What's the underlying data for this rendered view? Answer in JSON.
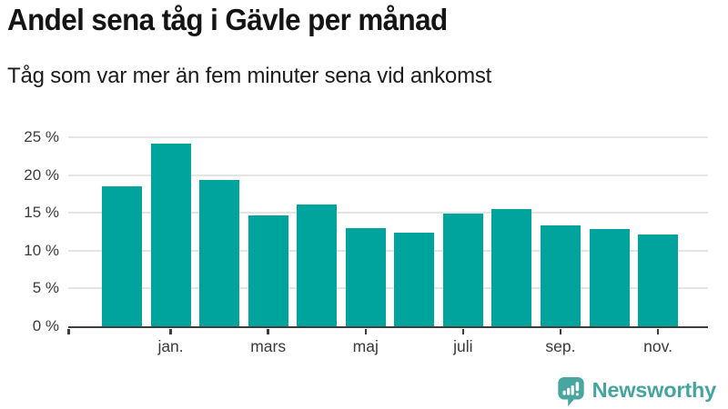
{
  "header": {
    "title": "Andel sena tåg i Gävle per månad",
    "subtitle": "Tåg som var mer än fem minuter sena vid ankomst"
  },
  "chart_data": {
    "type": "bar",
    "values": [
      18.5,
      24.2,
      19.3,
      14.7,
      16.1,
      13.0,
      12.4,
      14.9,
      15.5,
      13.3,
      12.9,
      12.1
    ],
    "xticks": [
      {
        "bar_index": 1,
        "label": "jan."
      },
      {
        "bar_index": 3,
        "label": "mars"
      },
      {
        "bar_index": 5,
        "label": "maj"
      },
      {
        "bar_index": 7,
        "label": "juli"
      },
      {
        "bar_index": 9,
        "label": "sep."
      },
      {
        "bar_index": 11,
        "label": "nov."
      }
    ],
    "yticks": [
      {
        "value": 0,
        "label": "0 %"
      },
      {
        "value": 5,
        "label": "5 %"
      },
      {
        "value": 10,
        "label": "10 %"
      },
      {
        "value": 15,
        "label": "15 %"
      },
      {
        "value": 20,
        "label": "20 %"
      },
      {
        "value": 25,
        "label": "25 %"
      }
    ],
    "ylim": [
      0,
      25
    ],
    "grid": true,
    "legend": "none",
    "bar_color": "#00a49c",
    "gridline_color": "#e4e4e4",
    "axis_color": "#3d3d3d"
  },
  "branding": {
    "logo_text": "Newsworthy",
    "logo_color": "#48a5a0",
    "logo_icon": "newsworthy-bubble-chart-icon"
  }
}
